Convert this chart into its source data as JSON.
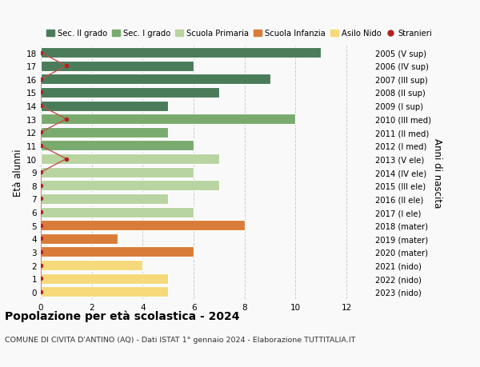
{
  "ages": [
    18,
    17,
    16,
    15,
    14,
    13,
    12,
    11,
    10,
    9,
    8,
    7,
    6,
    5,
    4,
    3,
    2,
    1,
    0
  ],
  "right_labels": [
    "2005 (V sup)",
    "2006 (IV sup)",
    "2007 (III sup)",
    "2008 (II sup)",
    "2009 (I sup)",
    "2010 (III med)",
    "2011 (II med)",
    "2012 (I med)",
    "2013 (V ele)",
    "2014 (IV ele)",
    "2015 (III ele)",
    "2016 (II ele)",
    "2017 (I ele)",
    "2018 (mater)",
    "2019 (mater)",
    "2020 (mater)",
    "2021 (nido)",
    "2022 (nido)",
    "2023 (nido)"
  ],
  "bar_values": [
    11,
    6,
    9,
    7,
    5,
    10,
    5,
    6,
    7,
    6,
    7,
    5,
    6,
    8,
    3,
    6,
    4,
    5,
    5
  ],
  "bar_colors": [
    "#4a7c59",
    "#4a7c59",
    "#4a7c59",
    "#4a7c59",
    "#4a7c59",
    "#7aab6e",
    "#7aab6e",
    "#7aab6e",
    "#b8d4a0",
    "#b8d4a0",
    "#b8d4a0",
    "#b8d4a0",
    "#b8d4a0",
    "#d97c3a",
    "#d97c3a",
    "#d97c3a",
    "#f5d97a",
    "#f5d97a",
    "#f5d97a"
  ],
  "stranieri_values": [
    0,
    1,
    0,
    0,
    0,
    1,
    0,
    0,
    1,
    0,
    0,
    0,
    0,
    0,
    0,
    0,
    0,
    0,
    0
  ],
  "legend_labels": [
    "Sec. II grado",
    "Sec. I grado",
    "Scuola Primaria",
    "Scuola Infanzia",
    "Asilo Nido",
    "Stranieri"
  ],
  "legend_colors": [
    "#4a7c59",
    "#7aab6e",
    "#b8d4a0",
    "#d97c3a",
    "#f5d97a",
    "#b22222"
  ],
  "title": "Popolazione per età scolastica - 2024",
  "subtitle": "COMUNE DI CIVITA D'ANTINO (AQ) - Dati ISTAT 1° gennaio 2024 - Elaborazione TUTTITALIA.IT",
  "xlabel_right": "Anni di nascita",
  "ylabel": "Età alunni",
  "xlim": [
    0,
    13
  ],
  "bar_height": 0.78,
  "bg_color": "#f9f9f9",
  "grid_color": "#cccccc",
  "dot_color": "#b22222",
  "dot_line_color": "#c0504d"
}
